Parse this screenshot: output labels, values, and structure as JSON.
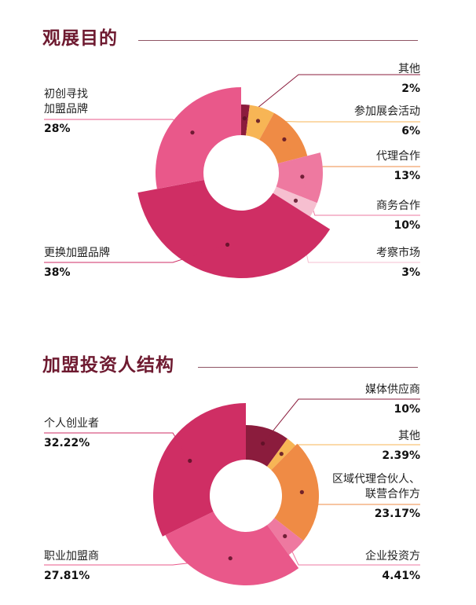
{
  "sections": [
    {
      "title": "观展目的"
    },
    {
      "title": "加盟投资人结构"
    }
  ],
  "chart_data": [
    {
      "type": "pie",
      "title": "观展目的",
      "categories": [
        "其他",
        "参加展会活动",
        "代理合作",
        "商务合作",
        "考察市场",
        "更换加盟品牌",
        "初创寻找加盟品牌"
      ],
      "values": [
        2,
        6,
        13,
        10,
        3,
        38,
        28
      ],
      "value_labels": [
        "2%",
        "6%",
        "13%",
        "10%",
        "3%",
        "38%",
        "28%"
      ],
      "label_lines": [
        [
          "其他"
        ],
        [
          "参加展会活动"
        ],
        [
          "代理合作"
        ],
        [
          "商务合作"
        ],
        [
          "考察市场"
        ],
        [
          "更换加盟品牌"
        ],
        [
          "初创寻找",
          "加盟品牌"
        ]
      ],
      "colors": [
        "#8b1c3d",
        "#f7b555",
        "#ef8b45",
        "#ee79a0",
        "#f6bfd0",
        "#cf2e64",
        "#e9588a"
      ],
      "donut": true
    },
    {
      "type": "pie",
      "title": "加盟投资人结构",
      "categories": [
        "媒体供应商",
        "其他",
        "区域代理合伙人、联营合作方",
        "企业投资方",
        "职业加盟商",
        "个人创业者"
      ],
      "values": [
        10,
        2.39,
        23.17,
        4.41,
        27.81,
        32.22
      ],
      "value_labels": [
        "10%",
        "2.39%",
        "23.17%",
        "4.41%",
        "27.81%",
        "32.22%"
      ],
      "label_lines": [
        [
          "媒体供应商"
        ],
        [
          "其他"
        ],
        [
          "区域代理合伙人、",
          "联营合作方"
        ],
        [
          "企业投资方"
        ],
        [
          "职业加盟商"
        ],
        [
          "个人创业者"
        ]
      ],
      "colors": [
        "#8b1c3d",
        "#f7b555",
        "#ef8b45",
        "#ee79a0",
        "#e9588a",
        "#cf2e64"
      ],
      "donut": true
    }
  ]
}
